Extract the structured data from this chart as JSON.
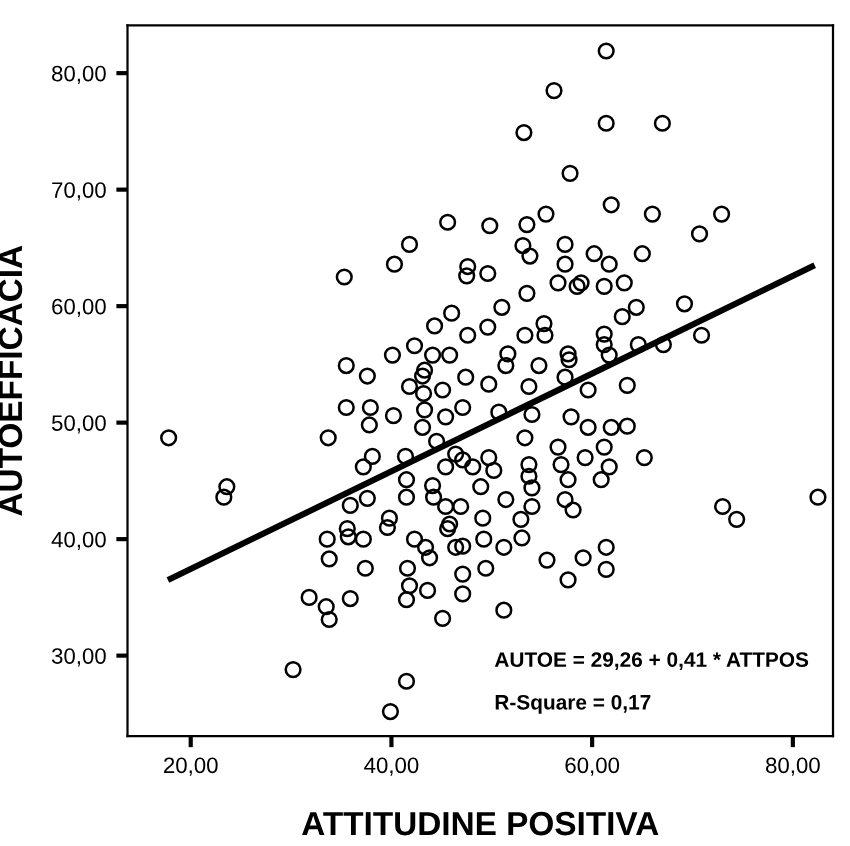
{
  "chart_data": {
    "type": "scatter",
    "xlabel": "ATTITUDINE POSITIVA",
    "ylabel": "AUTOEFFICACIA",
    "xlim": [
      13.7,
      84
    ],
    "ylim": [
      23.1,
      84.1
    ],
    "xticks": [
      {
        "value": 20,
        "label": "20,00"
      },
      {
        "value": 40,
        "label": "40,00"
      },
      {
        "value": 60,
        "label": "60,00"
      },
      {
        "value": 80,
        "label": "80,00"
      }
    ],
    "yticks": [
      {
        "value": 30,
        "label": "30,00"
      },
      {
        "value": 40,
        "label": "40,00"
      },
      {
        "value": 50,
        "label": "50,00"
      },
      {
        "value": 60,
        "label": "60,00"
      },
      {
        "value": 70,
        "label": "70,00"
      },
      {
        "value": 80,
        "label": "80,00"
      }
    ],
    "grid": false,
    "legend": false,
    "annotations": [
      "AUTOE = 29,26 + 0,41 * ATTPOS",
      "R-Square = 0,17"
    ],
    "series": [
      {
        "color": "#000000",
        "marker": "circle",
        "x": [
          17.8,
          23.6,
          23.3,
          30.2,
          31.8,
          33.5,
          33.8,
          33.7,
          33.6,
          33.8,
          35.5,
          35.6,
          35.7,
          35.9,
          35.9,
          37.2,
          37.4,
          37.6,
          37.8,
          37.9,
          38.1,
          37.2,
          39.6,
          39.8,
          40.2,
          39.9,
          41.5,
          41.5,
          41.6,
          41.8,
          41.5,
          41.5,
          41.4,
          42.3,
          43.4,
          43.6,
          43.8,
          45.1,
          44.1,
          44.2,
          45.4,
          45.6,
          45.4,
          44.5,
          43.1,
          43.3,
          41.8,
          43.2,
          45.1,
          45.4,
          46.4,
          46.4,
          35.3,
          40.3,
          41.8,
          45.6,
          35.5,
          37.6,
          40.1,
          42.3,
          44.3,
          46.0,
          44.1,
          45.8,
          43.1,
          43.3,
          61.4,
          56.2,
          61.4,
          67.0,
          53.2,
          57.8,
          61.9,
          66.0,
          72.9,
          70.7,
          49.8,
          53.5,
          55.4,
          53.1,
          53.8,
          57.3,
          57.3,
          60.2,
          61.7,
          65.0,
          47.6,
          47.5,
          49.6,
          53.5,
          56.6,
          58.5,
          58.9,
          61.2,
          63.2,
          69.2,
          51.0,
          49.6,
          47.6,
          55.2,
          53.3,
          55.3,
          63.0,
          64.4,
          61.2,
          61.2,
          64.6,
          67.1,
          70.9,
          61.7,
          57.6,
          57.7,
          54.7,
          51.4,
          51.6,
          47.4,
          49.7,
          53.7,
          57.3,
          59.6,
          63.5,
          47.1,
          50.7,
          54.0,
          57.9,
          59.6,
          61.9,
          63.5,
          53.3,
          56.6,
          61.2,
          65.2,
          49.7,
          47.1,
          53.7,
          56.9,
          59.3,
          48.1,
          50.2,
          61.7,
          60.9,
          57.6,
          53.7,
          48.9,
          54.0,
          51.4,
          46.9,
          54.0,
          57.3,
          58.1,
          49.1,
          45.8,
          52.9,
          73.0,
          74.4,
          82.5,
          49.2,
          47.1,
          51.2,
          53.0,
          61.4,
          55.5,
          59.1,
          61.4,
          49.4,
          47.1,
          47.1,
          57.6,
          51.2
        ],
        "values": [
          48.7,
          44.5,
          43.6,
          28.8,
          35.0,
          34.2,
          33.1,
          48.7,
          40.0,
          38.3,
          51.3,
          40.9,
          40.2,
          34.9,
          42.9,
          40.0,
          37.5,
          43.5,
          49.8,
          51.3,
          47.1,
          46.2,
          41.0,
          41.8,
          50.6,
          25.2,
          27.8,
          34.8,
          37.5,
          36.0,
          43.6,
          45.1,
          47.1,
          40.0,
          39.3,
          35.6,
          38.4,
          33.2,
          44.6,
          43.6,
          42.8,
          40.9,
          46.2,
          48.4,
          49.6,
          51.1,
          53.1,
          52.5,
          52.8,
          50.5,
          47.3,
          39.3,
          62.5,
          63.6,
          65.3,
          67.2,
          54.9,
          54.0,
          55.8,
          56.6,
          58.3,
          59.4,
          55.8,
          55.8,
          54.0,
          54.5,
          81.9,
          78.5,
          75.7,
          75.7,
          74.9,
          71.4,
          68.7,
          67.9,
          67.9,
          66.2,
          66.9,
          67.0,
          67.9,
          65.2,
          64.3,
          65.3,
          63.6,
          64.5,
          63.6,
          64.5,
          63.4,
          62.6,
          62.8,
          61.1,
          62.0,
          61.7,
          62.0,
          61.7,
          62.0,
          60.2,
          59.9,
          58.2,
          57.5,
          58.5,
          57.5,
          57.5,
          59.1,
          59.9,
          57.6,
          56.7,
          56.7,
          56.7,
          57.5,
          55.8,
          55.9,
          55.4,
          54.9,
          54.9,
          55.9,
          53.9,
          53.3,
          53.1,
          53.9,
          52.8,
          53.2,
          51.3,
          50.9,
          50.7,
          50.5,
          49.6,
          49.6,
          49.7,
          48.7,
          47.9,
          47.9,
          47.0,
          47.0,
          46.8,
          46.4,
          46.4,
          47.0,
          46.2,
          45.9,
          46.2,
          45.1,
          45.1,
          45.4,
          44.5,
          44.4,
          43.4,
          42.8,
          42.8,
          43.4,
          42.5,
          41.8,
          41.3,
          41.7,
          42.8,
          41.7,
          43.6,
          40.0,
          39.4,
          39.3,
          40.1,
          39.3,
          38.2,
          38.4,
          37.4,
          37.5,
          37.0,
          35.3,
          36.5,
          33.9
        ]
      },
      {
        "type": "line",
        "color": "#000000",
        "x": [
          18.0,
          81.9
        ],
        "values": [
          36.6,
          63.4
        ]
      }
    ]
  }
}
